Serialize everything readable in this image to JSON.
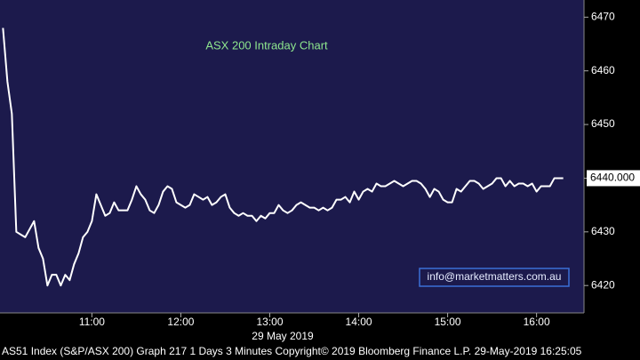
{
  "chart_data": {
    "type": "line",
    "title": "ASX 200 Intraday Chart",
    "annotation": "info@marketmatters.com.au",
    "xlabel": "29 May 2019",
    "footer": "AS51 Index (S&P/ASX 200) Graph 217 1 Days 3 Minutes Copyright© 2019 Bloomberg Finance L.P. 29-May-2019 16:25:05",
    "color": "#ffffff",
    "background": "#1c1a4c",
    "last_price": {
      "value": 6440,
      "label": "6440.000"
    },
    "xlim": [
      598,
      992
    ],
    "ylim": [
      6414.9,
      6473.2
    ],
    "xticks": [
      {
        "value": 660,
        "label": "11:00"
      },
      {
        "value": 720,
        "label": "12:00"
      },
      {
        "value": 780,
        "label": "13:00"
      },
      {
        "value": 840,
        "label": "14:00"
      },
      {
        "value": 900,
        "label": "15:00"
      },
      {
        "value": 960,
        "label": "16:00"
      }
    ],
    "yticks": [
      6420,
      6430,
      6440,
      6450,
      6460,
      6470
    ],
    "x": [
      600,
      603,
      606,
      609,
      612,
      615,
      618,
      621,
      624,
      627,
      630,
      633,
      636,
      639,
      642,
      645,
      648,
      651,
      654,
      657,
      660,
      663,
      666,
      669,
      672,
      675,
      678,
      681,
      684,
      687,
      690,
      693,
      696,
      699,
      702,
      705,
      708,
      711,
      714,
      717,
      720,
      723,
      726,
      729,
      732,
      735,
      738,
      741,
      744,
      747,
      750,
      753,
      756,
      759,
      762,
      765,
      768,
      771,
      774,
      777,
      780,
      783,
      786,
      789,
      792,
      795,
      798,
      801,
      804,
      807,
      810,
      813,
      816,
      819,
      822,
      825,
      828,
      831,
      834,
      837,
      840,
      843,
      846,
      849,
      852,
      855,
      858,
      861,
      864,
      867,
      870,
      873,
      876,
      879,
      882,
      885,
      888,
      891,
      894,
      897,
      900,
      903,
      906,
      909,
      912,
      915,
      918,
      921,
      924,
      927,
      930,
      933,
      936,
      939,
      942,
      945,
      948,
      951,
      954,
      957,
      960,
      963,
      966,
      969,
      972,
      975,
      978
    ],
    "values": [
      6468,
      6458,
      6452,
      6430,
      6429.5,
      6429,
      6430.5,
      6432,
      6427,
      6425,
      6420,
      6422,
      6422,
      6420,
      6422,
      6421,
      6424,
      6426,
      6429,
      6430,
      6432,
      6437,
      6435,
      6433,
      6433.5,
      6435.5,
      6434,
      6434,
      6434,
      6436,
      6438.5,
      6437,
      6436,
      6434,
      6433.5,
      6435,
      6437.5,
      6438.5,
      6438,
      6435.5,
      6435,
      6434.5,
      6435,
      6437,
      6436.5,
      6436,
      6436.5,
      6435,
      6435.5,
      6436.5,
      6437,
      6434.5,
      6433.5,
      6433,
      6433.5,
      6433,
      6433,
      6432,
      6433,
      6432.5,
      6433.5,
      6433.5,
      6435,
      6434,
      6433.5,
      6434,
      6435,
      6435.5,
      6435,
      6434.5,
      6434.5,
      6434,
      6434.5,
      6434,
      6434.5,
      6436,
      6436,
      6436.5,
      6435.5,
      6437.5,
      6436,
      6437.5,
      6438,
      6437.5,
      6439,
      6438.5,
      6438.5,
      6439,
      6439.5,
      6439,
      6438.5,
      6439,
      6439.5,
      6439.5,
      6439,
      6438,
      6436.5,
      6438,
      6437.5,
      6436,
      6435.5,
      6435.5,
      6438,
      6437.5,
      6438.5,
      6439.5,
      6439.5,
      6439,
      6438,
      6438.5,
      6439,
      6440,
      6440,
      6438.5,
      6439.5,
      6438.5,
      6439,
      6439,
      6438.5,
      6439,
      6437.5,
      6438.5,
      6438.5,
      6438.5,
      6440,
      6440,
      6440
    ]
  }
}
